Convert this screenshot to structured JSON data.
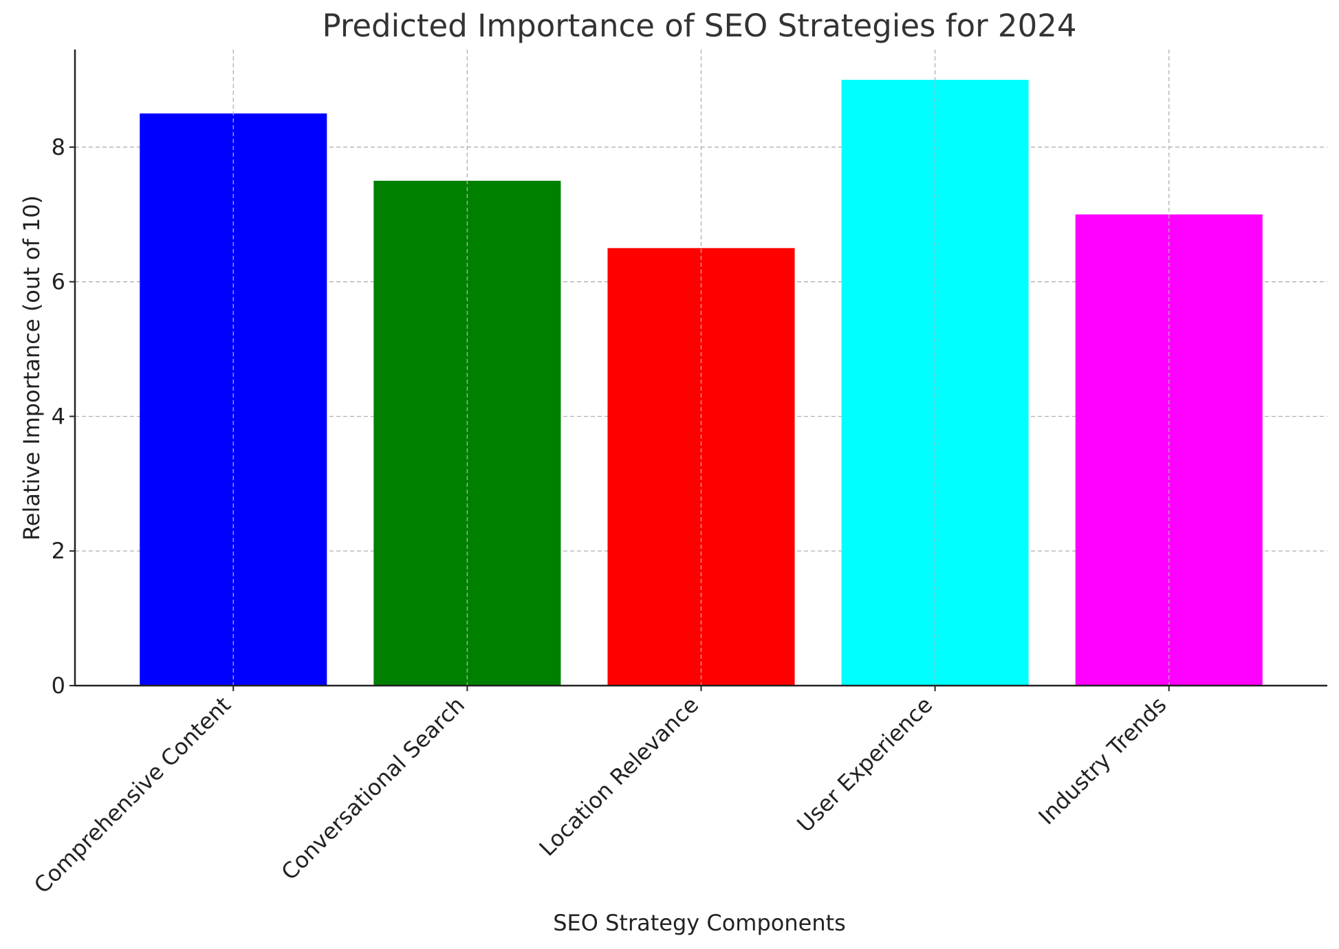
{
  "chart_data": {
    "type": "bar",
    "title": "Predicted Importance of SEO Strategies for 2024",
    "xlabel": "SEO Strategy Components",
    "ylabel": "Relative Importance (out of 10)",
    "categories": [
      "Comprehensive Content",
      "Conversational Search",
      "Location Relevance",
      "User Experience",
      "Industry Trends"
    ],
    "values": [
      8.5,
      7.5,
      6.5,
      9,
      7
    ],
    "colors": [
      "#0000ff",
      "#008000",
      "#ff0000",
      "#00ffff",
      "#ff00ff"
    ],
    "ylim": [
      0,
      9.45
    ],
    "yticks": [
      0,
      2,
      4,
      6,
      8
    ],
    "grid": true
  }
}
